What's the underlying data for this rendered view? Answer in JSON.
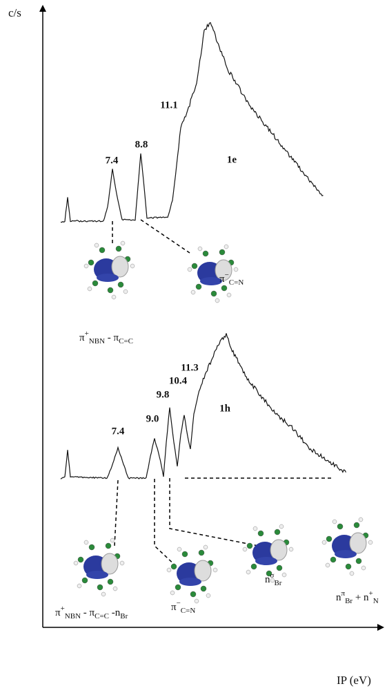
{
  "axes": {
    "y_label": "c/s",
    "x_label": "IP (eV)"
  },
  "spectra": [
    {
      "name": "1e",
      "peaks": [
        "7.4",
        "8.8",
        "11.1"
      ],
      "orbitals": [
        {
          "label": [
            {
              "t": "π"
            },
            {
              "sup": "+"
            },
            {
              "sub": "NBN"
            },
            {
              "t": " - π"
            },
            {
              "sub": "C=C"
            }
          ]
        },
        {
          "label": [
            {
              "t": "π"
            },
            {
              "sup": "−"
            },
            {
              "sub": "C=N"
            }
          ]
        }
      ]
    },
    {
      "name": "1h",
      "peaks": [
        "7.4",
        "9.0",
        "9.8",
        "10.4",
        "11.3"
      ],
      "orbitals": [
        {
          "label": [
            {
              "t": "π"
            },
            {
              "sup": "+"
            },
            {
              "sub": "NBN"
            },
            {
              "t": " - π"
            },
            {
              "sub": "C=C"
            },
            {
              "t": " -n"
            },
            {
              "sub": "Br"
            }
          ]
        },
        {
          "label": [
            {
              "t": "π"
            },
            {
              "sup": "−"
            },
            {
              "sub": "C=N"
            }
          ]
        },
        {
          "label": [
            {
              "t": "n"
            },
            {
              "sup": "σ"
            },
            {
              "sub": "Br"
            }
          ]
        },
        {
          "label": [
            {
              "t": "n"
            },
            {
              "sup": "π"
            },
            {
              "sub": "Br"
            },
            {
              "t": " + n"
            },
            {
              "sup": "+"
            },
            {
              "sub": "N"
            }
          ]
        }
      ]
    }
  ]
}
